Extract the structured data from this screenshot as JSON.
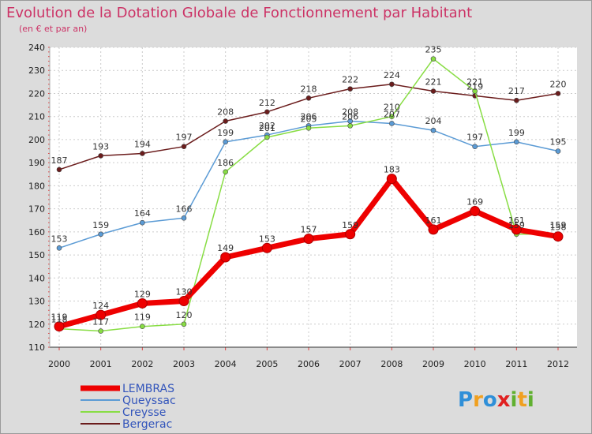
{
  "chart_data": {
    "type": "line",
    "title": "Evolution de la Dotation Globale de Fonctionnement par Habitant",
    "subtitle": "(en € et par an)",
    "x": [
      "2000",
      "2001",
      "2002",
      "2003",
      "2004",
      "2005",
      "2006",
      "2007",
      "2008",
      "2009",
      "2010",
      "2011",
      "2012"
    ],
    "ylim": [
      110,
      240
    ],
    "yticks": [
      110,
      120,
      130,
      140,
      150,
      160,
      170,
      180,
      190,
      200,
      210,
      220,
      230,
      240
    ],
    "series": [
      {
        "name": "LEMBRAS",
        "color": "#ee0000",
        "values": [
          119,
          124,
          129,
          130,
          149,
          153,
          157,
          159,
          183,
          161,
          169,
          161,
          158
        ]
      },
      {
        "name": "Queyssac",
        "color": "#5b9bd5",
        "values": [
          153,
          159,
          164,
          166,
          199,
          202,
          206,
          208,
          207,
          204,
          197,
          199,
          195
        ]
      },
      {
        "name": "Creysse",
        "color": "#88dd44",
        "values": [
          118,
          117,
          119,
          120,
          186,
          201,
          205,
          206,
          210,
          235,
          221,
          159,
          159
        ]
      },
      {
        "name": "Bergerac",
        "color": "#6b1c1c",
        "values": [
          187,
          193,
          194,
          197,
          208,
          212,
          218,
          222,
          224,
          221,
          219,
          217,
          220
        ]
      }
    ]
  },
  "brand": {
    "p": "P",
    "r": "r",
    "o1": "o",
    "x": "x",
    "i": "i",
    "t": "t",
    "i2": "i"
  }
}
